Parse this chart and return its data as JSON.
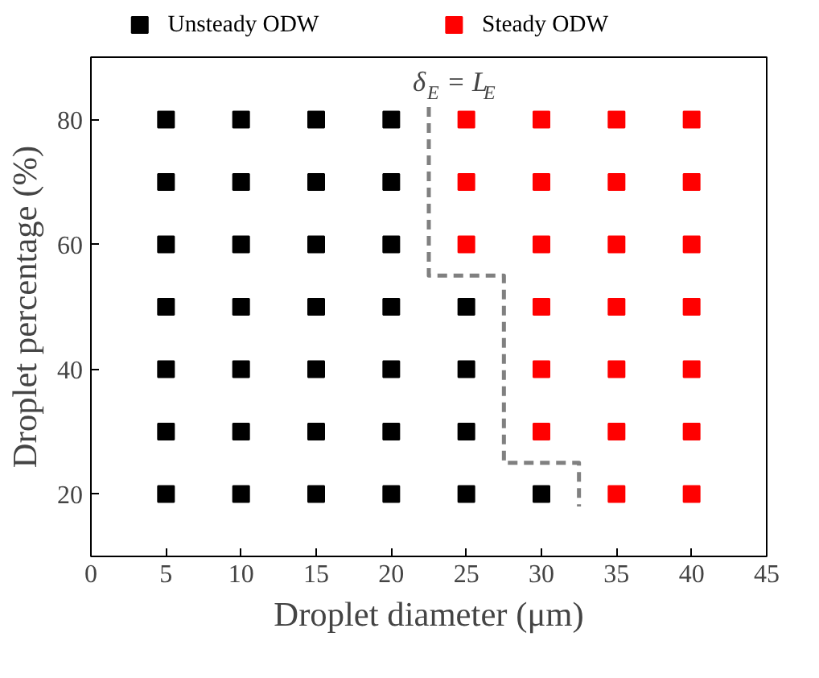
{
  "chart_data": {
    "type": "scatter",
    "xlabel": "Droplet diameter (μm)",
    "ylabel": "Droplet percentage (%)",
    "xlim": [
      0,
      45
    ],
    "xticks": [
      0,
      5,
      10,
      15,
      20,
      25,
      30,
      35,
      40,
      45
    ],
    "ylim": [
      10,
      90
    ],
    "yticks": [
      20,
      40,
      60,
      80
    ],
    "grid": false,
    "legend": "top",
    "marker": "square",
    "series": [
      {
        "name": "Unsteady ODW",
        "color": "#000000",
        "x": [
          5,
          10,
          15,
          20,
          5,
          10,
          15,
          20,
          5,
          10,
          15,
          20,
          5,
          10,
          15,
          20,
          25,
          5,
          10,
          15,
          20,
          25,
          5,
          10,
          15,
          20,
          25,
          5,
          10,
          15,
          20,
          25,
          30
        ],
        "values": [
          80,
          80,
          80,
          80,
          70,
          70,
          70,
          70,
          60,
          60,
          60,
          60,
          50,
          50,
          50,
          50,
          50,
          40,
          40,
          40,
          40,
          40,
          30,
          30,
          30,
          30,
          30,
          20,
          20,
          20,
          20,
          20,
          20
        ]
      },
      {
        "name": "Steady ODW",
        "color": "#ff0000",
        "x": [
          25,
          30,
          35,
          40,
          25,
          30,
          35,
          40,
          25,
          30,
          35,
          40,
          30,
          35,
          40,
          30,
          35,
          40,
          30,
          35,
          40,
          35,
          40
        ],
        "values": [
          80,
          80,
          80,
          80,
          70,
          70,
          70,
          70,
          60,
          60,
          60,
          60,
          50,
          50,
          50,
          40,
          40,
          40,
          30,
          30,
          30,
          20,
          20
        ]
      },
      {
        "type": "line",
        "line_style": "dashed",
        "marker": "none",
        "color": "#808080",
        "x": [
          22.5,
          22.5,
          27.5,
          27.5,
          32.5,
          32.5
        ],
        "values": [
          82,
          55,
          55,
          25,
          25,
          18
        ]
      }
    ],
    "annotations": [
      "δ$_{E}$ = L$_{E}$"
    ]
  }
}
